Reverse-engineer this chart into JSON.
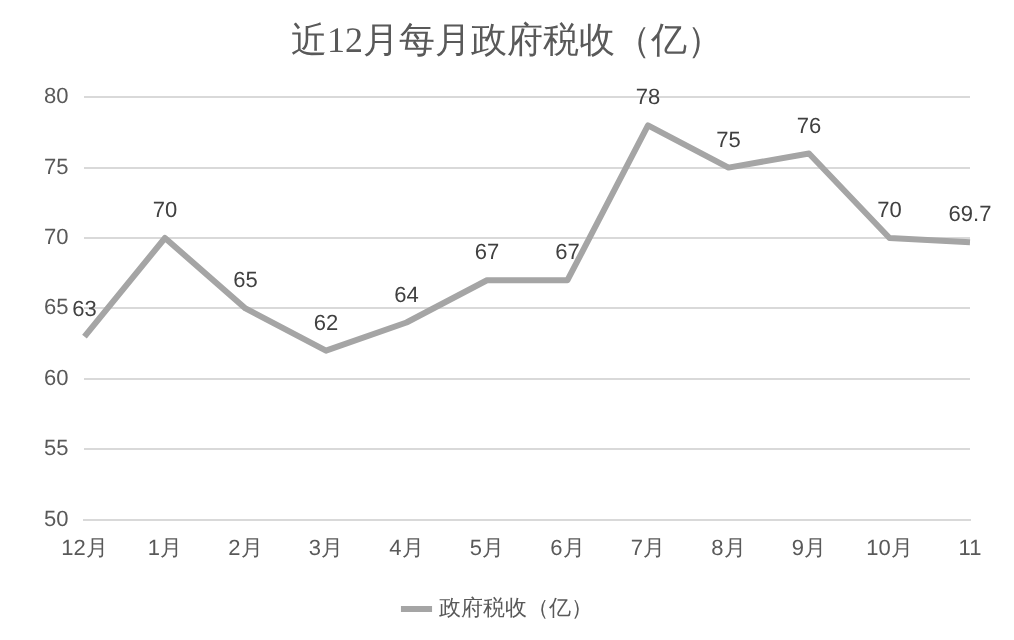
{
  "chart_data": {
    "type": "line",
    "title": "近12月每月政府税收（亿）",
    "categories": [
      "12月",
      "1月",
      "2月",
      "3月",
      "4月",
      "5月",
      "6月",
      "7月",
      "8月",
      "9月",
      "10月",
      "11"
    ],
    "series": [
      {
        "name": "政府税收（亿）",
        "color": "#a5a5a5",
        "values": [
          63,
          70,
          65,
          62,
          64,
          67,
          67,
          78,
          75,
          76,
          70,
          69.7
        ]
      }
    ],
    "ylim": [
      50,
      80
    ],
    "yticks": [
      50,
      55,
      60,
      65,
      70,
      75,
      80
    ],
    "grid": "y",
    "legend": "bottom",
    "marker": "none",
    "line_style": "solid",
    "data_labels": true
  }
}
